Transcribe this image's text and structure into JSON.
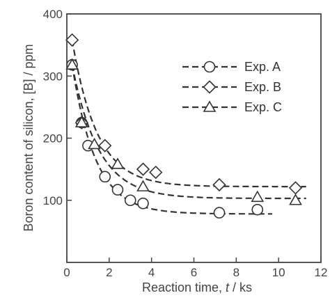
{
  "chart_data": {
    "type": "scatter",
    "xlabel_prefix": "Reaction time, ",
    "xlabel_var": "t",
    "xlabel_suffix": " / ks",
    "ylabel_prefix": "Boron content of silicon, [B] / ppm",
    "xlim": [
      0,
      12
    ],
    "ylim": [
      0,
      400
    ],
    "xticks": [
      0,
      2,
      4,
      6,
      8,
      10,
      12
    ],
    "yticks": [
      100,
      200,
      300,
      400
    ],
    "grid": false,
    "legend_position": "top-right",
    "series": [
      {
        "name": "Exp. A",
        "marker": "circle",
        "x": [
          0.25,
          0.7,
          1.0,
          1.8,
          2.4,
          3.0,
          3.6,
          7.2,
          9.0
        ],
        "y": [
          318,
          225,
          188,
          138,
          117,
          100,
          95,
          80,
          85
        ],
        "fit": {
          "x0": 0.25,
          "x1": 9.7,
          "y0": 318,
          "yinf": 78,
          "k": 0.9
        }
      },
      {
        "name": "Exp. B",
        "marker": "diamond",
        "x": [
          0.25,
          0.7,
          1.8,
          3.6,
          4.2,
          7.2,
          10.8
        ],
        "y": [
          358,
          225,
          188,
          150,
          145,
          125,
          120
        ],
        "fit": {
          "x0": 0.25,
          "x1": 11.3,
          "y0": 358,
          "yinf": 122,
          "k": 0.85
        }
      },
      {
        "name": "Exp. C",
        "marker": "triangle",
        "x": [
          0.25,
          0.7,
          1.3,
          2.4,
          3.6,
          9.0,
          10.8
        ],
        "y": [
          318,
          225,
          190,
          158,
          122,
          105,
          100
        ],
        "fit": {
          "x0": 0.25,
          "x1": 11.3,
          "y0": 318,
          "yinf": 103,
          "k": 0.8
        }
      }
    ]
  }
}
